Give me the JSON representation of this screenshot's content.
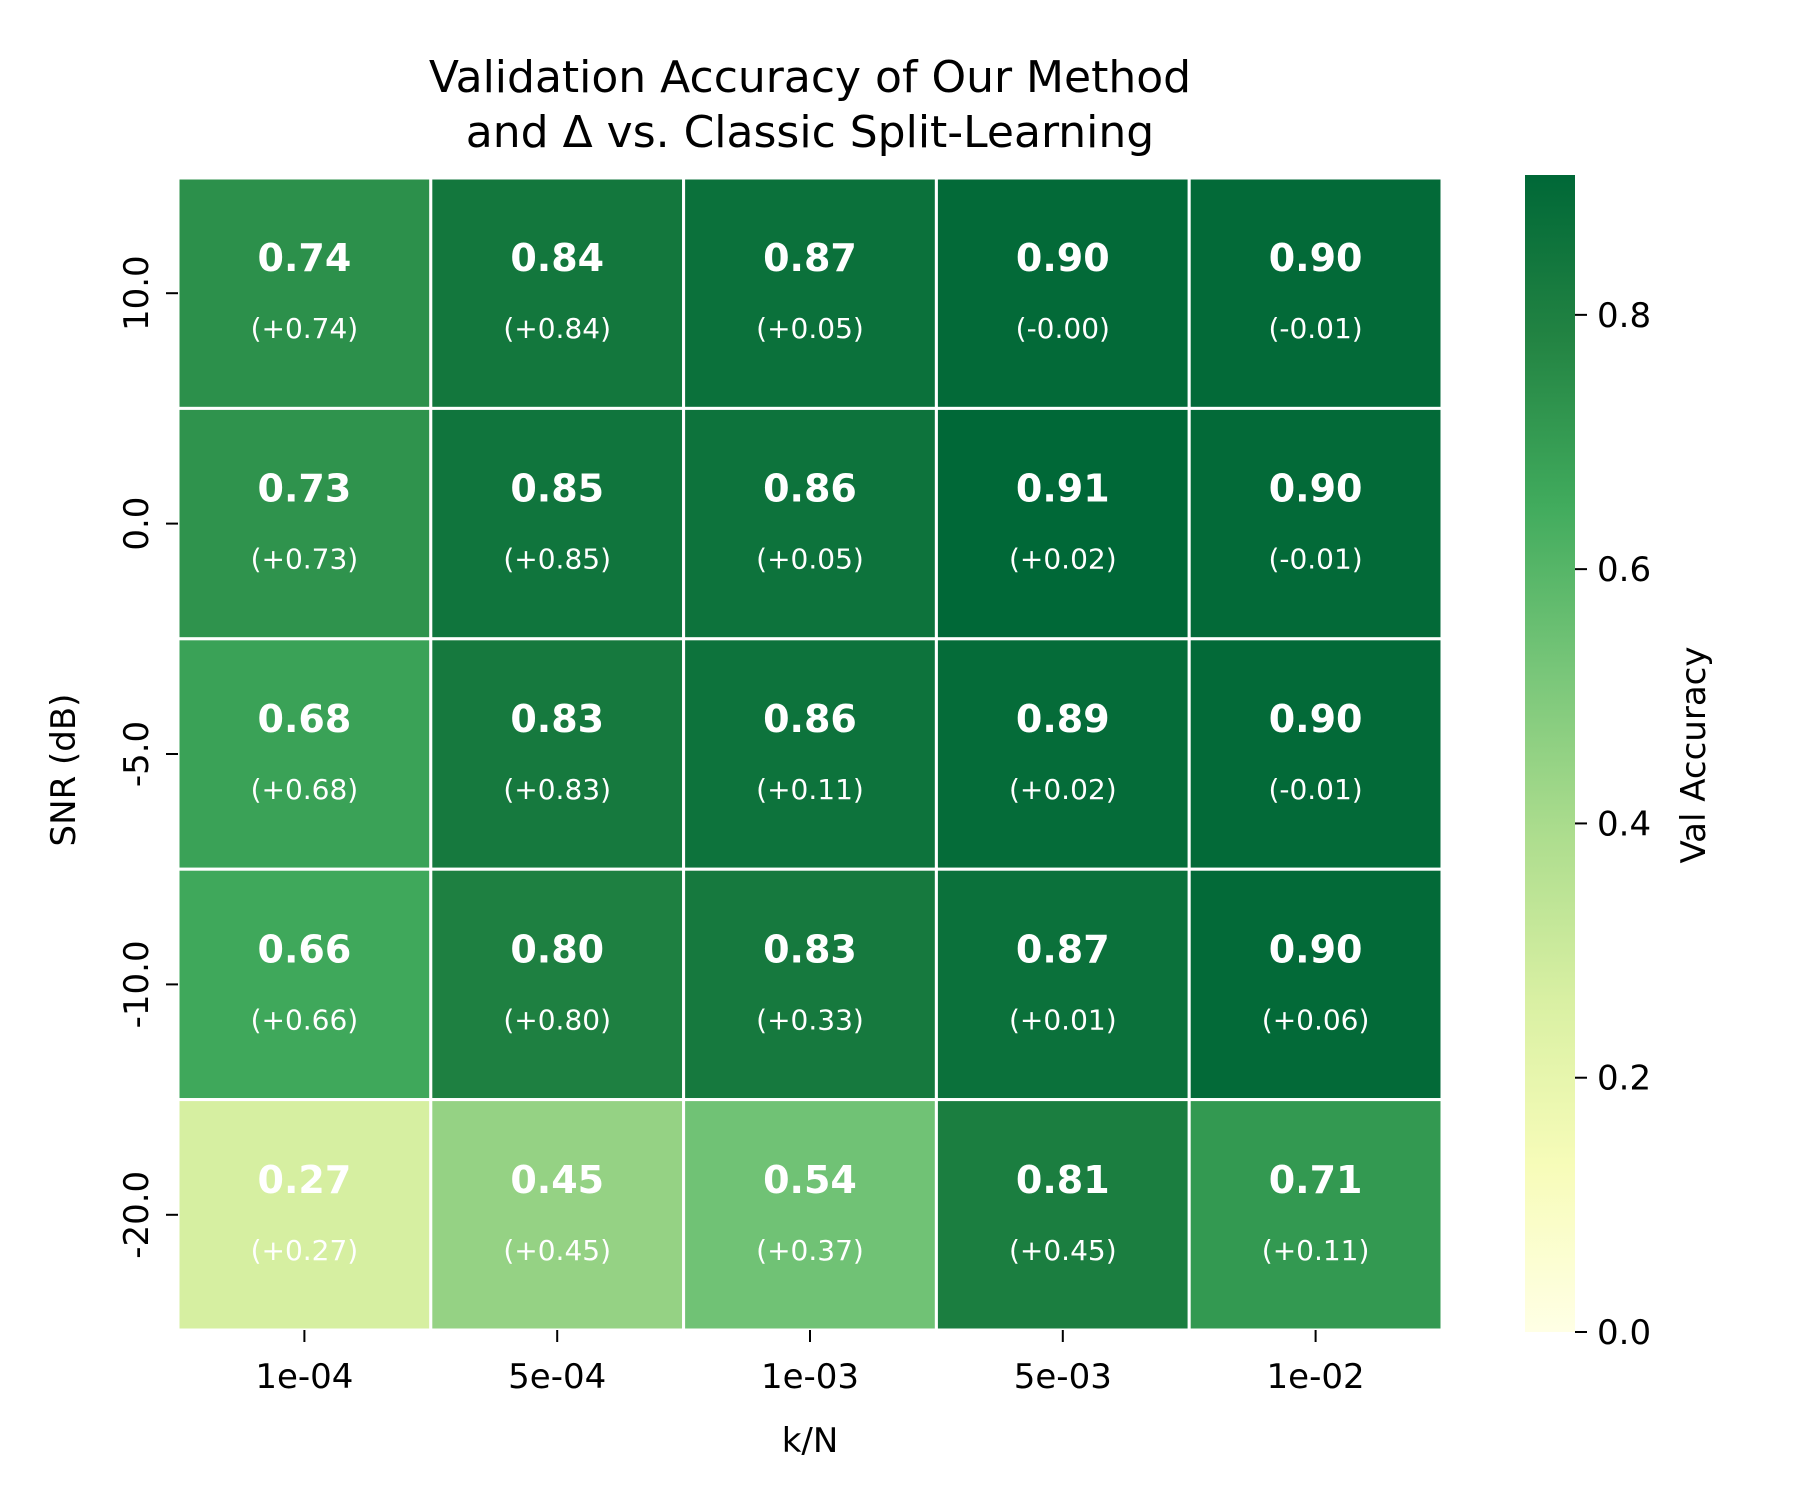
{
  "chart_data": {
    "type": "heatmap",
    "title": [
      "Validation Accuracy of Our Method",
      "and Δ vs. Classic Split-Learning"
    ],
    "xlabel": "k/N",
    "ylabel": "SNR (dB)",
    "x_categories": [
      "1e-04",
      "5e-04",
      "1e-03",
      "5e-03",
      "1e-02"
    ],
    "y_categories": [
      "10.0",
      "0.0",
      "-5.0",
      "-10.0",
      "-20.0"
    ],
    "values": [
      [
        0.74,
        0.84,
        0.87,
        0.9,
        0.9
      ],
      [
        0.73,
        0.85,
        0.86,
        0.91,
        0.9
      ],
      [
        0.68,
        0.83,
        0.86,
        0.89,
        0.9
      ],
      [
        0.66,
        0.8,
        0.83,
        0.87,
        0.9
      ],
      [
        0.27,
        0.45,
        0.54,
        0.81,
        0.71
      ]
    ],
    "value_labels": [
      [
        "0.74",
        "0.84",
        "0.87",
        "0.90",
        "0.90"
      ],
      [
        "0.73",
        "0.85",
        "0.86",
        "0.91",
        "0.90"
      ],
      [
        "0.68",
        "0.83",
        "0.86",
        "0.89",
        "0.90"
      ],
      [
        "0.66",
        "0.80",
        "0.83",
        "0.87",
        "0.90"
      ],
      [
        "0.27",
        "0.45",
        "0.54",
        "0.81",
        "0.71"
      ]
    ],
    "delta_labels": [
      [
        "(+0.74)",
        "(+0.84)",
        "(+0.05)",
        "(-0.00)",
        "(-0.01)"
      ],
      [
        "(+0.73)",
        "(+0.85)",
        "(+0.05)",
        "(+0.02)",
        "(-0.01)"
      ],
      [
        "(+0.68)",
        "(+0.83)",
        "(+0.11)",
        "(+0.02)",
        "(-0.01)"
      ],
      [
        "(+0.66)",
        "(+0.80)",
        "(+0.33)",
        "(+0.01)",
        "(+0.06)"
      ],
      [
        "(+0.27)",
        "(+0.45)",
        "(+0.37)",
        "(+0.45)",
        "(+0.11)"
      ]
    ],
    "colorbar": {
      "label": "Val Accuracy",
      "range": [
        0.0,
        0.91
      ],
      "ticks": [
        0.0,
        0.2,
        0.4,
        0.6,
        0.8
      ],
      "tick_labels": [
        "0.0",
        "0.2",
        "0.4",
        "0.6",
        "0.8"
      ],
      "colormap": "YlGn",
      "stops": [
        "#ffffe5",
        "#f7fcb9",
        "#d9f0a3",
        "#addd8e",
        "#78c679",
        "#41ab5d",
        "#238443",
        "#006837"
      ]
    },
    "grid": false,
    "cell_border_color": "#ffffff"
  }
}
